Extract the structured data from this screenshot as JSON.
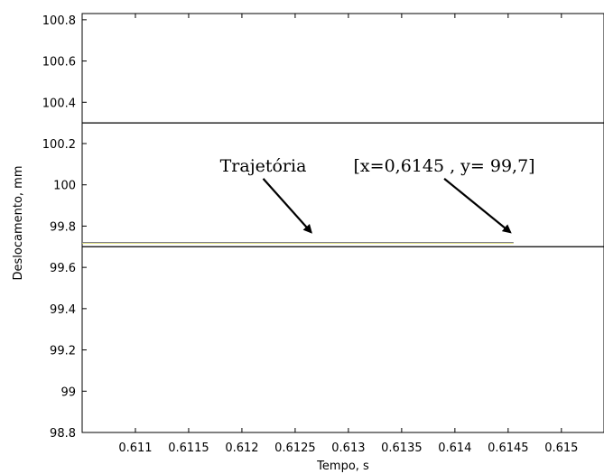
{
  "chart_data": {
    "type": "line",
    "xlabel": "Tempo, s",
    "ylabel": "Deslocamento, mm",
    "xlim": [
      0.6105,
      0.6154
    ],
    "ylim": [
      98.8,
      100.83
    ],
    "xticks": [
      0.611,
      0.6115,
      0.612,
      0.6125,
      0.613,
      0.6135,
      0.614,
      0.6145,
      0.615
    ],
    "xtick_labels": [
      "0.611",
      "0.6115",
      "0.612",
      "0.6125",
      "0.613",
      "0.6135",
      "0.614",
      "0.6145",
      "0.615"
    ],
    "yticks": [
      98.8,
      99,
      99.2,
      99.4,
      99.6,
      99.8,
      100,
      100.2,
      100.4,
      100.6,
      100.8
    ],
    "ytick_labels": [
      "98.8",
      "99",
      "99.2",
      "99.4",
      "99.6",
      "99.8",
      "100",
      "100.2",
      "100.4",
      "100.6",
      "100.8"
    ],
    "grid": false,
    "series": [
      {
        "x": [
          0.6105,
          0.6154
        ],
        "y": [
          100.3,
          100.3
        ],
        "color": "#000000"
      },
      {
        "x": [
          0.6105,
          0.6154
        ],
        "y": [
          99.7,
          99.7
        ],
        "color": "#000000"
      },
      {
        "x": [
          0.6105,
          0.61455
        ],
        "y": [
          99.72,
          99.72
        ],
        "color": "#1f1f8f"
      },
      {
        "x": [
          0.6105,
          0.61455
        ],
        "y": [
          99.718,
          99.718
        ],
        "color": "#d8d860"
      }
    ],
    "annotations": [
      {
        "text": "Trajetória",
        "x": 0.6122,
        "y": 100.03,
        "arrow_to": [
          0.61265,
          99.77
        ]
      },
      {
        "text": "[x=0,6145 , y= 99,7]",
        "x": 0.6139,
        "y": 100.03,
        "arrow_to": [
          0.61452,
          99.77
        ]
      }
    ]
  }
}
